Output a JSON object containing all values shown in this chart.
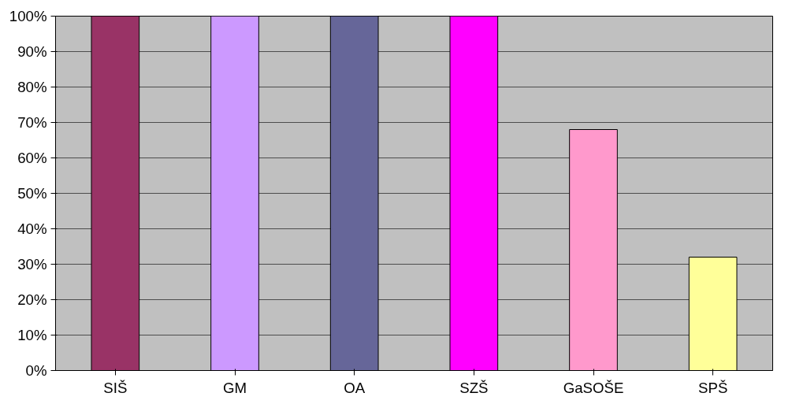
{
  "chart_data": {
    "type": "bar",
    "categories": [
      "SIŠ",
      "GM",
      "OA",
      "SZŠ",
      "GaSOŠE",
      "SPŠ"
    ],
    "values": [
      100,
      100,
      100,
      100,
      68,
      32
    ],
    "colors": [
      "#993366",
      "#cc99ff",
      "#666699",
      "#ff00ff",
      "#ff99cc",
      "#ffff99"
    ],
    "ylim": [
      0,
      100
    ],
    "yticks": [
      {
        "value": 0,
        "label": "0%"
      },
      {
        "value": 10,
        "label": "10%"
      },
      {
        "value": 20,
        "label": "20%"
      },
      {
        "value": 30,
        "label": "30%"
      },
      {
        "value": 40,
        "label": "40%"
      },
      {
        "value": 50,
        "label": "50%"
      },
      {
        "value": 60,
        "label": "60%"
      },
      {
        "value": 70,
        "label": "70%"
      },
      {
        "value": 80,
        "label": "80%"
      },
      {
        "value": 90,
        "label": "90%"
      },
      {
        "value": 100,
        "label": "100%"
      }
    ],
    "grid": "y"
  }
}
